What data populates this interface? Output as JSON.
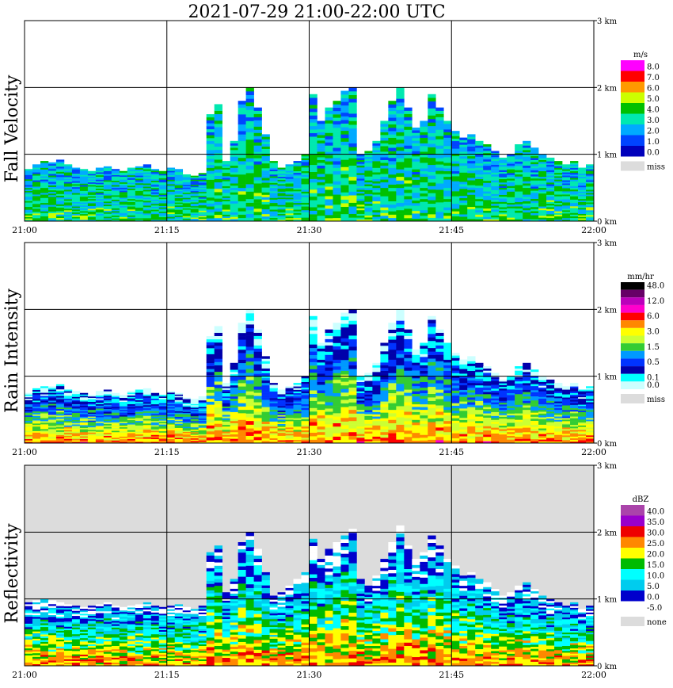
{
  "title": "2021-07-29   21:00-22:00 UTC",
  "chart_data": [
    {
      "type": "heatmap",
      "panel_label": "Fall Velocity",
      "unit": "m/s",
      "x_ticks": [
        "21:00",
        "21:15",
        "21:30",
        "21:45",
        "22:00"
      ],
      "y_ticks": [
        "0 km",
        "1 km",
        "2 km",
        "3 km"
      ],
      "xlim": [
        "21:00",
        "22:00"
      ],
      "ylim_km": [
        0,
        3
      ],
      "grid": true,
      "legend_placement": "right",
      "background": "#ffffff",
      "scale": [
        {
          "label": "8.0",
          "color": "#ff00ff"
        },
        {
          "label": "7.0",
          "color": "#ff0000"
        },
        {
          "label": "6.0",
          "color": "#ff9900"
        },
        {
          "label": "5.0",
          "color": "#ccff00"
        },
        {
          "label": "4.0",
          "color": "#00c000"
        },
        {
          "label": "3.0",
          "color": "#00e8b0"
        },
        {
          "label": "2.0",
          "color": "#00aaff"
        },
        {
          "label": "1.0",
          "color": "#0044ff"
        },
        {
          "label": "0.0",
          "color": "#0000bb"
        },
        {
          "label": "miss",
          "color": "#dcdcdc",
          "separate": true
        }
      ],
      "echo_tops_km": [
        0.78,
        0.85,
        0.9,
        0.88,
        0.92,
        0.85,
        0.8,
        0.78,
        0.75,
        0.8,
        0.82,
        0.78,
        0.75,
        0.8,
        0.82,
        0.85,
        0.78,
        0.75,
        0.8,
        0.78,
        0.7,
        0.68,
        0.72,
        1.6,
        1.75,
        0.9,
        1.2,
        1.8,
        2.0,
        1.7,
        1.3,
        0.9,
        0.8,
        0.85,
        0.9,
        1.0,
        1.9,
        1.5,
        1.7,
        1.8,
        1.95,
        2.0,
        1.0,
        1.05,
        1.2,
        1.5,
        1.8,
        2.0,
        1.7,
        1.4,
        1.5,
        1.9,
        1.7,
        1.5,
        1.35,
        1.25,
        1.3,
        1.2,
        1.15,
        1.05,
        0.95,
        1.0,
        1.15,
        1.2,
        1.1,
        1.0,
        0.95,
        0.9,
        0.85,
        0.9,
        0.8,
        0.85
      ],
      "core_value": 2.5
    },
    {
      "type": "heatmap",
      "panel_label": "Rain Intensity",
      "unit": "mm/hr",
      "x_ticks": [
        "21:00",
        "21:15",
        "21:30",
        "21:45",
        "22:00"
      ],
      "y_ticks": [
        "0 km",
        "1 km",
        "2 km",
        "3 km"
      ],
      "xlim": [
        "21:00",
        "22:00"
      ],
      "ylim_km": [
        0,
        3
      ],
      "grid": true,
      "legend_placement": "right",
      "background": "#ffffff",
      "scale": [
        {
          "label": "48.0",
          "color": "#000000"
        },
        {
          "label": "",
          "color": "#660066"
        },
        {
          "label": "12.0",
          "color": "#bb00bb"
        },
        {
          "label": "",
          "color": "#ff00cc"
        },
        {
          "label": "6.0",
          "color": "#ff0000"
        },
        {
          "label": "",
          "color": "#ff8800"
        },
        {
          "label": "3.0",
          "color": "#ffff00"
        },
        {
          "label": "",
          "color": "#ccff33"
        },
        {
          "label": "1.5",
          "color": "#33cc33"
        },
        {
          "label": "",
          "color": "#0099ff"
        },
        {
          "label": "0.5",
          "color": "#0033ff"
        },
        {
          "label": "",
          "color": "#0000aa"
        },
        {
          "label": "0.1",
          "color": "#00ffff"
        },
        {
          "label": "0.0",
          "color": "#ccffff"
        },
        {
          "label": "miss",
          "color": "#dcdcdc",
          "separate": true
        }
      ],
      "echo_tops_km": [
        0.75,
        0.82,
        0.85,
        0.85,
        0.88,
        0.8,
        0.78,
        0.75,
        0.72,
        0.78,
        0.8,
        0.75,
        0.72,
        0.78,
        0.8,
        0.82,
        0.75,
        0.72,
        0.78,
        0.75,
        0.68,
        0.66,
        0.7,
        1.6,
        1.75,
        0.9,
        1.2,
        1.8,
        2.0,
        1.7,
        1.3,
        0.9,
        0.8,
        0.85,
        0.9,
        1.0,
        1.9,
        1.5,
        1.7,
        1.8,
        1.95,
        2.0,
        1.0,
        1.05,
        1.2,
        1.5,
        1.8,
        2.0,
        1.7,
        1.4,
        1.5,
        1.9,
        1.7,
        1.5,
        1.35,
        1.25,
        1.3,
        1.2,
        1.15,
        1.05,
        0.95,
        1.0,
        1.15,
        1.2,
        1.1,
        1.0,
        0.95,
        0.9,
        0.85,
        0.9,
        0.8,
        0.85
      ],
      "core_value": 6.0
    },
    {
      "type": "heatmap",
      "panel_label": "Reflectivity",
      "unit": "dBZ",
      "x_ticks": [
        "21:00",
        "21:15",
        "21:30",
        "21:45",
        "22:00"
      ],
      "y_ticks": [
        "0 km",
        "1 km",
        "2 km",
        "3 km"
      ],
      "xlim": [
        "21:00",
        "22:00"
      ],
      "ylim_km": [
        0,
        3
      ],
      "grid": true,
      "legend_placement": "right",
      "background": "#dcdcdc",
      "scale": [
        {
          "label": "40.0",
          "color": "#aa44aa"
        },
        {
          "label": "35.0",
          "color": "#9900cc"
        },
        {
          "label": "30.0",
          "color": "#ee0000"
        },
        {
          "label": "25.0",
          "color": "#ff8800"
        },
        {
          "label": "20.0",
          "color": "#ffff00"
        },
        {
          "label": "15.0",
          "color": "#00bb00"
        },
        {
          "label": "10.0",
          "color": "#00ffff"
        },
        {
          "label": "5.0",
          "color": "#00ccee"
        },
        {
          "label": "0.0",
          "color": "#0000cc"
        },
        {
          "label": "-5.0",
          "color": "#ffffff"
        },
        {
          "label": "none",
          "color": "#dcdcdc",
          "separate": true
        }
      ],
      "echo_tops_km": [
        0.95,
        0.98,
        1.0,
        0.98,
        0.95,
        0.92,
        0.9,
        0.88,
        0.9,
        0.92,
        0.95,
        0.9,
        0.88,
        0.9,
        0.92,
        0.95,
        0.9,
        0.88,
        0.9,
        0.92,
        0.88,
        0.85,
        0.9,
        1.7,
        1.8,
        1.1,
        1.3,
        1.85,
        2.0,
        1.75,
        1.4,
        1.05,
        1.1,
        1.2,
        1.3,
        1.4,
        1.9,
        1.6,
        1.75,
        1.85,
        1.95,
        2.05,
        1.3,
        1.2,
        1.35,
        1.6,
        1.85,
        2.1,
        1.8,
        1.6,
        1.7,
        1.95,
        1.8,
        1.6,
        1.5,
        1.35,
        1.4,
        1.3,
        1.25,
        1.15,
        1.05,
        1.1,
        1.2,
        1.25,
        1.15,
        1.05,
        1.0,
        0.95,
        0.9,
        0.95,
        0.85,
        0.9
      ],
      "core_value": 25.0
    }
  ]
}
